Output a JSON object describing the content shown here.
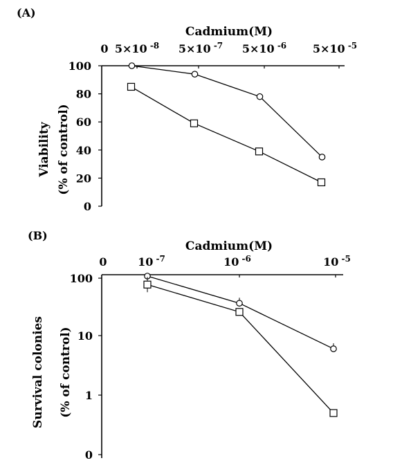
{
  "chart_data": [
    {
      "panel": "(A)",
      "type": "line",
      "title": "Cadmium(M)",
      "ylabel": [
        "Viability",
        "(% of control)"
      ],
      "x_ticks": [
        {
          "label": "0",
          "base": "0",
          "exp": ""
        },
        {
          "label": "5×10^-8",
          "base": "5×10",
          "exp": "-8"
        },
        {
          "label": "5×10^-7",
          "base": "5×10",
          "exp": "-7"
        },
        {
          "label": "5×10^-6",
          "base": "5×10",
          "exp": "-6"
        },
        {
          "label": "5×10^-5",
          "base": "5×10",
          "exp": "-5"
        }
      ],
      "x": [
        "5×10^-8",
        "5×10^-7",
        "5×10^-6",
        "5×10^-5"
      ],
      "y_ticks": [
        "100",
        "80",
        "60",
        "40",
        "20",
        "0"
      ],
      "ylim": [
        0,
        100
      ],
      "series": [
        {
          "marker": "circle",
          "values": [
            100,
            94,
            78,
            35
          ]
        },
        {
          "marker": "square",
          "values": [
            85,
            59,
            39,
            17
          ]
        }
      ]
    },
    {
      "panel": "(B)",
      "type": "line",
      "title": "Cadmium(M)",
      "ylabel": [
        "Survival colonies",
        "(% of control)"
      ],
      "y_scale": "log",
      "x_ticks": [
        {
          "label": "0",
          "base": "0",
          "exp": ""
        },
        {
          "label": "10^-7",
          "base": "10",
          "exp": "-7"
        },
        {
          "label": "10^-6",
          "base": "10",
          "exp": "-6"
        },
        {
          "label": "10^-5",
          "base": "10",
          "exp": "-5"
        }
      ],
      "x": [
        "10^-7",
        "10^-6",
        "10^-5"
      ],
      "y_ticks": [
        "100",
        "10",
        "1",
        "0"
      ],
      "series": [
        {
          "marker": "circle",
          "values": [
            100,
            35,
            6
          ]
        },
        {
          "marker": "square",
          "values": [
            72,
            25,
            0.5
          ]
        }
      ]
    }
  ]
}
